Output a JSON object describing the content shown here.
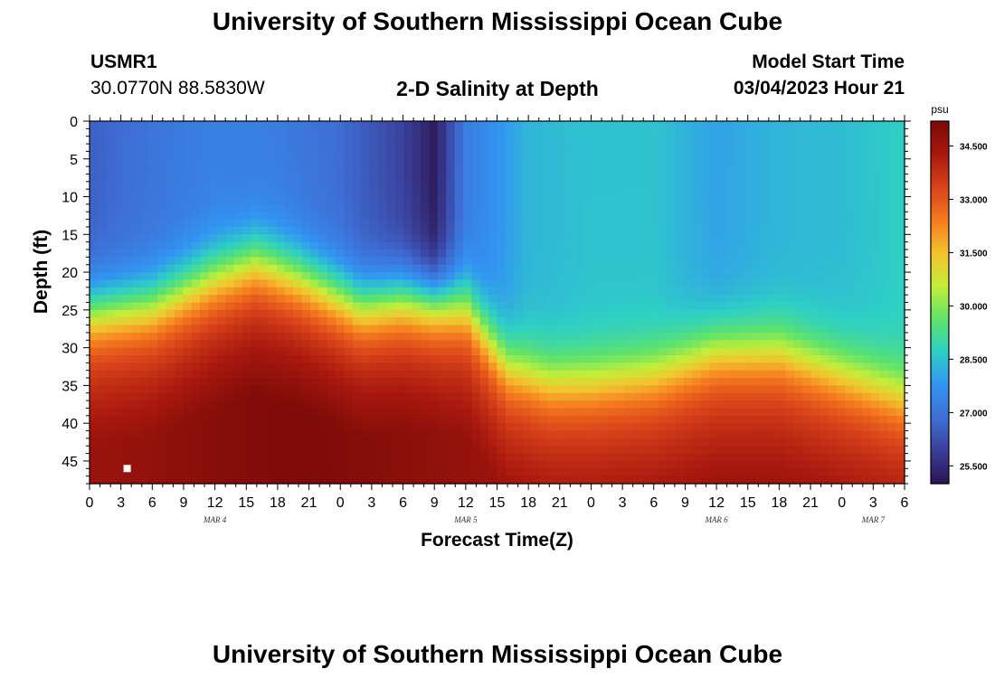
{
  "page": {
    "title_top": "University of Southern Mississippi Ocean Cube",
    "title_bottom": "University of Southern Mississippi Ocean Cube"
  },
  "station": {
    "id": "USMR1",
    "coords": "30.0770N  88.5830W"
  },
  "model": {
    "label": "Model Start Time",
    "start": "03/04/2023 Hour 21"
  },
  "chart_data": {
    "type": "heatmap",
    "title": "2-D Salinity at Depth",
    "xlabel": "Forecast Time(Z)",
    "ylabel": "Depth (ft)",
    "x_tick_labels": [
      "0",
      "3",
      "6",
      "9",
      "12",
      "15",
      "18",
      "21",
      "0",
      "3",
      "6",
      "9",
      "12",
      "15",
      "18",
      "21",
      "0",
      "3",
      "6",
      "9",
      "12",
      "15",
      "18",
      "21",
      "0",
      "3",
      "6"
    ],
    "date_labels": [
      {
        "text": "MAR 4",
        "x_hours": 12
      },
      {
        "text": "MAR 5",
        "x_hours": 36
      },
      {
        "text": "MAR 6",
        "x_hours": 60
      },
      {
        "text": "MAR 7",
        "x_hours": 75
      }
    ],
    "xlim": [
      0,
      78
    ],
    "y_tick_labels": [
      "0",
      "5",
      "10",
      "15",
      "20",
      "25",
      "30",
      "35",
      "40",
      "45"
    ],
    "y_ticks": [
      0,
      5,
      10,
      15,
      20,
      25,
      30,
      35,
      40,
      45
    ],
    "ylim": [
      0,
      48
    ],
    "y_inverted": true,
    "colorbar": {
      "unit": "psu",
      "min": 25.0,
      "max": 35.2,
      "tick_values": [
        25.5,
        27.0,
        28.5,
        30.0,
        31.5,
        33.0,
        34.5
      ],
      "tick_labels": [
        "25.500",
        "27.000",
        "28.500",
        "30.000",
        "31.500",
        "33.000",
        "34.500"
      ],
      "colors": [
        "#2a1550",
        "#3a3e98",
        "#3e6fd6",
        "#3294f2",
        "#2ed0c4",
        "#5fe36a",
        "#c4ee38",
        "#f4c22e",
        "#f57a1e",
        "#d9421a",
        "#a8180e",
        "#7a0a08"
      ]
    },
    "surface_salinity_profile": {
      "x_hours": [
        0,
        6,
        12,
        18,
        24,
        30,
        33,
        36,
        42,
        48,
        54,
        60,
        66,
        72,
        78
      ],
      "values": [
        26.6,
        27.0,
        27.3,
        27.2,
        26.8,
        26.0,
        25.2,
        27.2,
        28.3,
        28.5,
        28.5,
        28.0,
        28.3,
        28.4,
        28.7
      ]
    },
    "halocline_depth_profile_ft": {
      "x_hours": [
        0,
        6,
        12,
        16,
        20,
        26,
        30,
        36,
        40,
        44,
        48,
        54,
        60,
        66,
        72,
        78
      ],
      "values": [
        25,
        24,
        20,
        18,
        20,
        24,
        23,
        24,
        32,
        34,
        34,
        33,
        30,
        30,
        33,
        36
      ]
    },
    "marker": {
      "x_hours": 3.6,
      "depth_ft": 46
    }
  }
}
